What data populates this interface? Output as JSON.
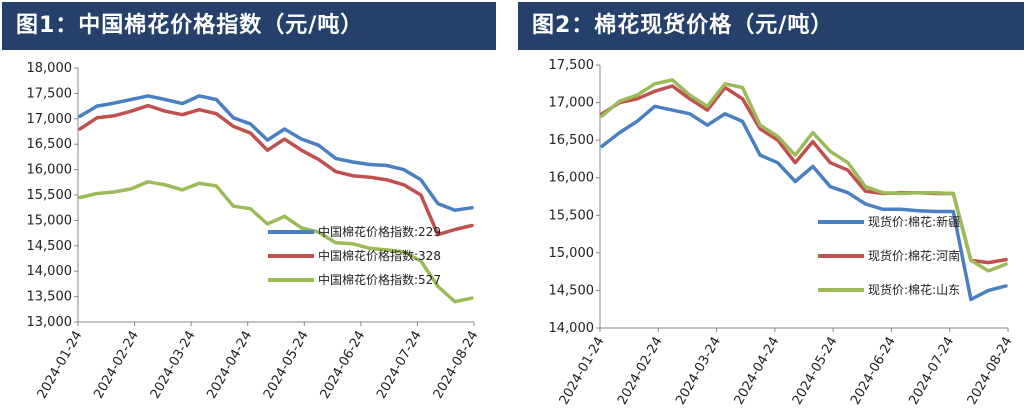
{
  "chart_data": [
    {
      "type": "line",
      "title": "图1：中国棉花价格指数（元/吨）",
      "ylim": [
        13000,
        18000
      ],
      "y_ticks": [
        "18,000",
        "17,500",
        "17,000",
        "16,500",
        "16,000",
        "15,500",
        "15,000",
        "14,500",
        "14,000",
        "13,500",
        "13,000"
      ],
      "x_ticks": [
        "2024-01-24",
        "2024-02-24",
        "2024-03-24",
        "2024-04-24",
        "2024-05-24",
        "2024-06-24",
        "2024-07-24",
        "2024-08-24"
      ],
      "grid": false,
      "legend_position": "bottom-right",
      "series": [
        {
          "name": "中国棉花价格指数:229",
          "color": "#4a7fc1",
          "values": [
            17050,
            17250,
            17310,
            17380,
            17450,
            17380,
            17300,
            17450,
            17380,
            17020,
            16900,
            16580,
            16800,
            16600,
            16480,
            16220,
            16150,
            16100,
            16080,
            16000,
            15800,
            15330,
            15200,
            15250
          ]
        },
        {
          "name": "中国棉花价格指数:328",
          "color": "#c0504d",
          "values": [
            16800,
            17020,
            17060,
            17150,
            17260,
            17150,
            17080,
            17180,
            17100,
            16850,
            16720,
            16380,
            16600,
            16380,
            16200,
            15960,
            15880,
            15850,
            15800,
            15700,
            15500,
            14720,
            14820,
            14900
          ]
        },
        {
          "name": "中国棉花价格指数:527",
          "color": "#9bbb59",
          "values": [
            15450,
            15530,
            15560,
            15620,
            15760,
            15700,
            15600,
            15730,
            15680,
            15280,
            15230,
            14930,
            15080,
            14850,
            14770,
            14560,
            14540,
            14450,
            14420,
            14380,
            14200,
            13700,
            13400,
            13470
          ]
        }
      ]
    },
    {
      "type": "line",
      "title": "图2：棉花现货价格（元/吨）",
      "ylim": [
        14000,
        17500
      ],
      "y_ticks": [
        "17,500",
        "17,000",
        "16,500",
        "16,000",
        "15,500",
        "15,000",
        "14,500",
        "14,000"
      ],
      "x_ticks": [
        "2024-01-24",
        "2024-02-24",
        "2024-03-24",
        "2024-04-24",
        "2024-05-24",
        "2024-06-24",
        "2024-07-24",
        "2024-08-24"
      ],
      "grid": false,
      "legend_position": "right",
      "series": [
        {
          "name": "现货价:棉花:新疆",
          "color": "#4a7fc1",
          "values": [
            16420,
            16600,
            16750,
            16950,
            16900,
            16850,
            16700,
            16850,
            16750,
            16300,
            16200,
            15950,
            16150,
            15880,
            15800,
            15650,
            15580,
            15580,
            15560,
            15550,
            15550,
            14380,
            14500,
            14560
          ]
        },
        {
          "name": "现货价:棉花:河南",
          "color": "#c0504d",
          "values": [
            16850,
            17000,
            17050,
            17150,
            17220,
            17050,
            16900,
            17200,
            17050,
            16650,
            16500,
            16200,
            16480,
            16200,
            16100,
            15820,
            15790,
            15800,
            15800,
            15790,
            15790,
            14900,
            14870,
            14910
          ]
        },
        {
          "name": "现货价:棉花:山东",
          "color": "#9bbb59",
          "values": [
            16820,
            17020,
            17100,
            17250,
            17300,
            17100,
            16950,
            17250,
            17200,
            16700,
            16550,
            16300,
            16600,
            16350,
            16200,
            15880,
            15800,
            15790,
            15800,
            15800,
            15790,
            14900,
            14760,
            14850
          ]
        }
      ]
    }
  ]
}
